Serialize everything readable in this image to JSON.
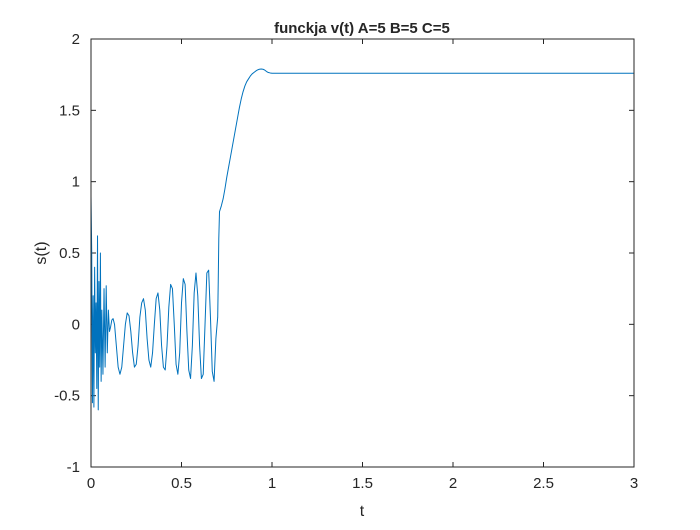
{
  "chart_data": {
    "type": "line",
    "title": "funckja v(t) A=5 B=5 C=5",
    "xlabel": "t",
    "ylabel": "s(t)",
    "xlim": [
      0,
      3
    ],
    "ylim": [
      -1,
      2
    ],
    "xticks": [
      0,
      0.5,
      1,
      1.5,
      2,
      2.5,
      3
    ],
    "xtick_labels": [
      "0",
      "0.5",
      "1",
      "1.5",
      "2",
      "2.5",
      "3"
    ],
    "yticks": [
      -1,
      -0.5,
      0,
      0.5,
      1,
      1.5,
      2
    ],
    "ytick_labels": [
      "-1",
      "-0.5",
      "0",
      "0.5",
      "1",
      "1.5",
      "2"
    ],
    "grid": false,
    "box": true,
    "series": [
      {
        "color": "#0072BD",
        "x": [
          0,
          0.004,
          0.008,
          0.012,
          0.016,
          0.02,
          0.024,
          0.028,
          0.032,
          0.036,
          0.04,
          0.044,
          0.048,
          0.052,
          0.056,
          0.06,
          0.066,
          0.072,
          0.078,
          0.084,
          0.09,
          0.096,
          0.102,
          0.108,
          0.115,
          0.122,
          0.13,
          0.14,
          0.15,
          0.16,
          0.17,
          0.18,
          0.19,
          0.2,
          0.21,
          0.22,
          0.23,
          0.24,
          0.25,
          0.26,
          0.27,
          0.28,
          0.29,
          0.3,
          0.31,
          0.32,
          0.33,
          0.34,
          0.35,
          0.36,
          0.37,
          0.38,
          0.39,
          0.4,
          0.41,
          0.42,
          0.43,
          0.44,
          0.45,
          0.46,
          0.47,
          0.48,
          0.49,
          0.5,
          0.51,
          0.52,
          0.53,
          0.54,
          0.55,
          0.56,
          0.57,
          0.58,
          0.59,
          0.6,
          0.61,
          0.62,
          0.63,
          0.64,
          0.65,
          0.66,
          0.67,
          0.68,
          0.69,
          0.7,
          0.703,
          0.706,
          0.71,
          0.72,
          0.73,
          0.74,
          0.75,
          0.76,
          0.77,
          0.78,
          0.79,
          0.8,
          0.81,
          0.82,
          0.83,
          0.84,
          0.85,
          0.86,
          0.87,
          0.88,
          0.89,
          0.9,
          0.91,
          0.92,
          0.93,
          0.94,
          0.95,
          0.96,
          0.97,
          0.98,
          0.99,
          1.0,
          1.05,
          1.1,
          1.5,
          2.0,
          2.5,
          3.0
        ],
        "y": [
          0.9,
          0.5,
          -0.55,
          0.2,
          -0.58,
          0.4,
          -0.2,
          0.15,
          -0.45,
          0.62,
          -0.6,
          0.3,
          -0.3,
          0.5,
          -0.4,
          0.1,
          -0.35,
          0.25,
          -0.3,
          0.27,
          -0.2,
          0.1,
          -0.05,
          -0.02,
          0.03,
          0.04,
          0.0,
          -0.15,
          -0.3,
          -0.35,
          -0.3,
          -0.15,
          0.0,
          0.08,
          0.06,
          -0.05,
          -0.2,
          -0.3,
          -0.28,
          -0.15,
          0.05,
          0.15,
          0.18,
          0.1,
          -0.1,
          -0.25,
          -0.3,
          -0.2,
          0.0,
          0.18,
          0.22,
          0.1,
          -0.15,
          -0.3,
          -0.32,
          -0.15,
          0.12,
          0.28,
          0.25,
          0.0,
          -0.28,
          -0.35,
          -0.2,
          0.15,
          0.32,
          0.28,
          -0.05,
          -0.32,
          -0.38,
          -0.15,
          0.22,
          0.36,
          0.2,
          -0.15,
          -0.38,
          -0.35,
          0.0,
          0.36,
          0.38,
          0.05,
          -0.33,
          -0.4,
          -0.1,
          0.05,
          0.3,
          0.6,
          0.79,
          0.83,
          0.88,
          0.95,
          1.03,
          1.1,
          1.17,
          1.24,
          1.31,
          1.38,
          1.45,
          1.52,
          1.58,
          1.63,
          1.67,
          1.7,
          1.72,
          1.74,
          1.755,
          1.765,
          1.775,
          1.783,
          1.788,
          1.79,
          1.788,
          1.782,
          1.772,
          1.765,
          1.762,
          1.76,
          1.76,
          1.76,
          1.76,
          1.76,
          1.76,
          1.76
        ]
      }
    ]
  }
}
